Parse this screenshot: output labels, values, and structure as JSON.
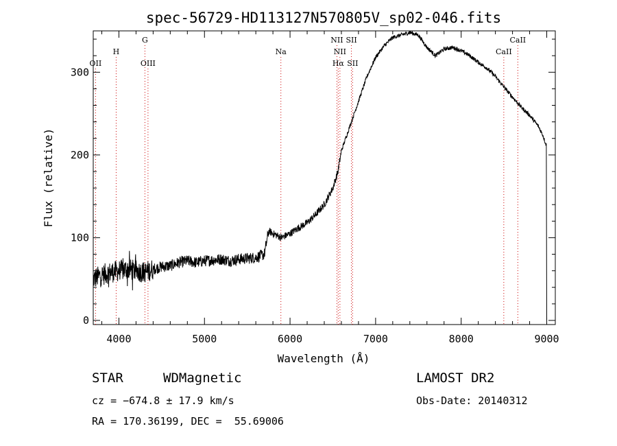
{
  "chart_data": {
    "type": "line",
    "title": "spec-56729-HD113127N570805V_sp02-046.fits",
    "xlabel": "Wavelength (Å)",
    "ylabel": "Flux (relative)",
    "xlim": [
      3700,
      9100
    ],
    "ylim": [
      -5,
      350
    ],
    "xticks": [
      4000,
      5000,
      6000,
      7000,
      8000,
      9000
    ],
    "yticks": [
      0,
      100,
      200,
      300
    ],
    "grid": false,
    "series": [
      {
        "x": [
          3700,
          3800,
          3900,
          4000,
          4100,
          4200,
          4300,
          4400,
          4500,
          4600,
          4700,
          4800,
          4900,
          5000,
          5100,
          5200,
          5300,
          5400,
          5500,
          5600,
          5700,
          5750,
          5800,
          5900,
          6000,
          6100,
          6200,
          6300,
          6400,
          6500,
          6560,
          6600,
          6700,
          6800,
          6900,
          7000,
          7100,
          7200,
          7300,
          7400,
          7500,
          7600,
          7700,
          7800,
          7900,
          8000,
          8100,
          8200,
          8300,
          8400,
          8500,
          8600,
          8700,
          8800,
          8900,
          8950,
          9000
        ],
        "y": [
          50,
          55,
          58,
          60,
          62,
          60,
          58,
          62,
          65,
          66,
          70,
          72,
          70,
          72,
          73,
          74,
          72,
          74,
          75,
          76,
          80,
          108,
          105,
          100,
          105,
          112,
          118,
          128,
          140,
          160,
          180,
          205,
          235,
          265,
          295,
          318,
          332,
          342,
          345,
          348,
          345,
          330,
          320,
          328,
          330,
          326,
          320,
          312,
          305,
          295,
          282,
          270,
          258,
          248,
          235,
          225,
          210
        ]
      }
    ],
    "lines": [
      {
        "label": "OII",
        "x": 3727,
        "row": 3
      },
      {
        "label": "H",
        "x": 3968,
        "row": 2
      },
      {
        "label": "G",
        "x": 4304,
        "row": 1
      },
      {
        "label": "OIII",
        "x": 4340,
        "row": 3
      },
      {
        "label": "Na",
        "x": 5893,
        "row": 2
      },
      {
        "label": "NII",
        "x": 6548,
        "row": 1
      },
      {
        "label": "NII",
        "x": 6583,
        "row": 2
      },
      {
        "label": "Hα",
        "x": 6563,
        "row": 3
      },
      {
        "label": "SII",
        "x": 6717,
        "row": 1
      },
      {
        "label": "SII",
        "x": 6731,
        "row": 3
      },
      {
        "label": "CaII",
        "x": 8498,
        "row": 2
      },
      {
        "label": "CaII",
        "x": 8662,
        "row": 1
      }
    ]
  },
  "info": {
    "class": "STAR",
    "subclass": "WDMagnetic",
    "survey": "LAMOST DR2",
    "cz": "cz = −674.8 ± 17.9 km/s",
    "obsdate": "Obs-Date: 20140312",
    "radec": "RA = 170.36199, DEC =  55.69006"
  }
}
